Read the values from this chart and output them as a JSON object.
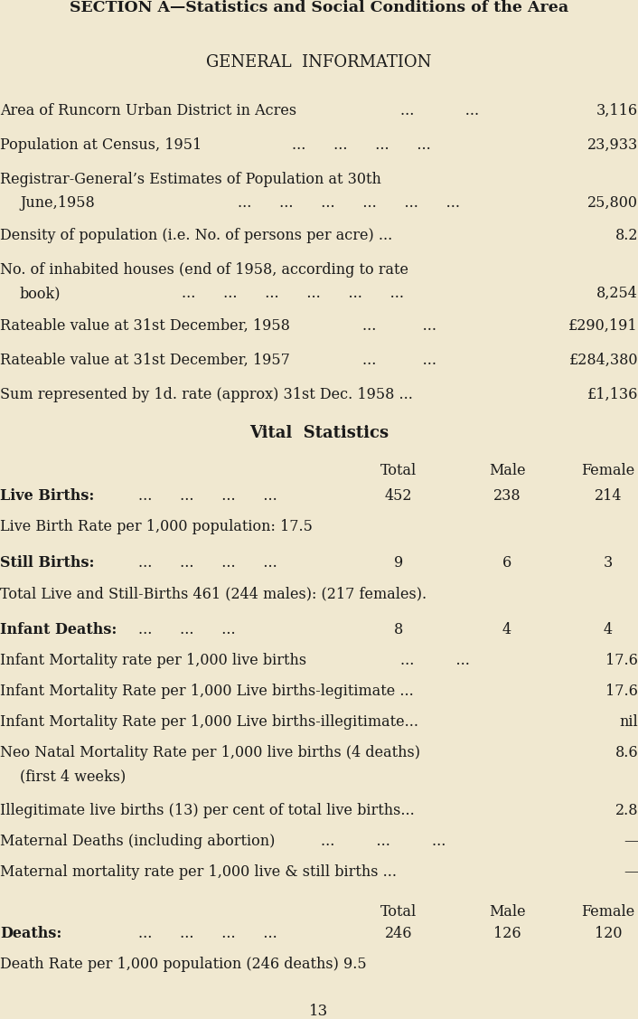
{
  "bg_color": "#f0e8d0",
  "text_color": "#1a1a1a",
  "section_title": "SECTION A—Statistics and Social Conditions of the Area",
  "general_info_title": "GENERAL  INFORMATION",
  "page_number": "13"
}
